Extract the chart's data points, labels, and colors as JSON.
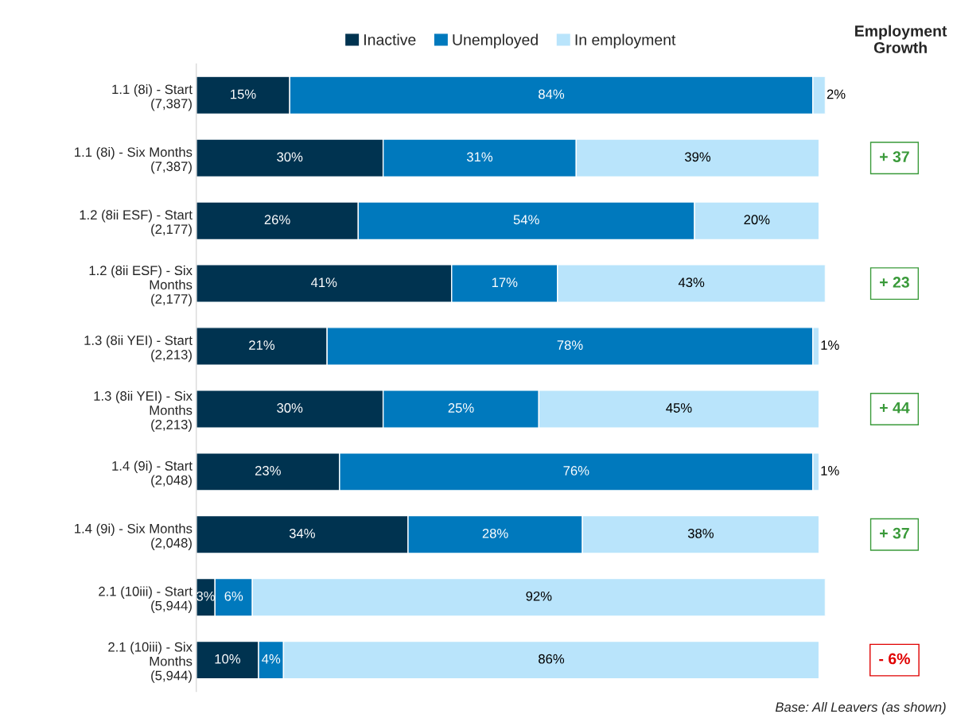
{
  "chart_data": {
    "type": "bar",
    "orientation": "horizontal",
    "stacked": true,
    "categories": [
      "1.1 (8i) - Start\n(7,387)",
      "1.1 (8i) - Six Months\n(7,387)",
      "1.2 (8ii ESF) - Start\n(2,177)",
      "1.2 (8ii ESF) - Six\nMonths\n(2,177)",
      "1.3 (8ii YEI) - Start\n(2,213)",
      "1.3 (8ii YEI) - Six\nMonths\n(2,213)",
      "1.4 (9i) - Start\n(2,048)",
      "1.4 (9i) - Six Months\n(2,048)",
      "2.1 (10iii) - Start\n(5,944)",
      "2.1 (10iii) - Six\nMonths\n(5,944)"
    ],
    "series": [
      {
        "name": "Inactive",
        "color": "#003350",
        "values": [
          15,
          30,
          26,
          41,
          21,
          30,
          23,
          34,
          3,
          10
        ],
        "value_labels": [
          "15%",
          "30%",
          "26%",
          "41%",
          "21%",
          "30%",
          "23%",
          "34%",
          "3%",
          "10%"
        ]
      },
      {
        "name": "Unemployed",
        "color": "#0079bd",
        "values": [
          84,
          31,
          54,
          17,
          78,
          25,
          76,
          28,
          6,
          4
        ],
        "value_labels": [
          "84%",
          "31%",
          "54%",
          "17%",
          "78%",
          "25%",
          "76%",
          "28%",
          "6%",
          "4%"
        ]
      },
      {
        "name": "In employment",
        "color": "#b9e4fb",
        "values": [
          2,
          39,
          20,
          43,
          1,
          45,
          1,
          38,
          92,
          86
        ],
        "value_labels": [
          "2%",
          "39%",
          "20%",
          "43%",
          "1%",
          "45%",
          "1%",
          "38%",
          "92%",
          "86%"
        ]
      }
    ],
    "legend": "top",
    "grid": false,
    "annotations": [
      "Employment\nGrowth",
      "+ 37",
      "+ 23",
      "+ 44",
      "+ 37",
      "- 6%",
      "Base: All Leavers (as shown)"
    ]
  }
}
